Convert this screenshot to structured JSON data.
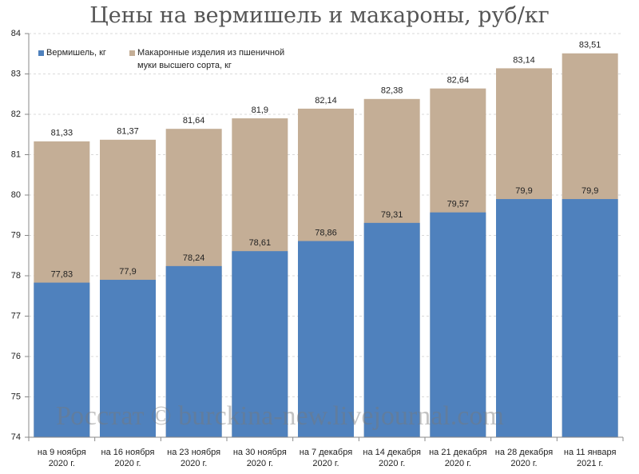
{
  "chart_data": {
    "type": "bar",
    "title": "Цены на вермишель и макароны, руб/кг",
    "watermark": "Росстат © burckina-new.livejournal.com",
    "categories": [
      "на 9 ноября\n2020 г.",
      "на 16 ноября\n2020 г.",
      "на 23 ноября\n2020 г.",
      "на 30 ноября\n2020 г.",
      "на 7 декабря\n2020 г.",
      "на 14 декабря\n2020 г.",
      "на 21 декабря\n2020 г.",
      "на 28 декабря\n2020 г.",
      "на 11 января\n2021 г."
    ],
    "series": [
      {
        "name": "Вермишель, кг",
        "color": "#4f81bd",
        "values": [
          77.83,
          77.9,
          78.24,
          78.61,
          78.86,
          79.31,
          79.57,
          79.9,
          79.9
        ],
        "value_labels": [
          "77,83",
          "77,9",
          "78,24",
          "78,61",
          "78,86",
          "79,31",
          "79,57",
          "79,9",
          "79,9"
        ]
      },
      {
        "name": "Макаронные изделия из пшеничной\nмуки высшего сорта, кг",
        "color": "#c4ae96",
        "values": [
          81.33,
          81.37,
          81.64,
          81.9,
          82.14,
          82.38,
          82.64,
          83.14,
          83.51
        ],
        "value_labels": [
          "81,33",
          "81,37",
          "81,64",
          "81,9",
          "82,14",
          "82,38",
          "82,64",
          "83,14",
          "83,51"
        ]
      }
    ],
    "ylim": [
      74,
      84
    ],
    "yticks": [
      74,
      75,
      76,
      77,
      78,
      79,
      80,
      81,
      82,
      83,
      84
    ],
    "grid": true,
    "legend": "top-left"
  }
}
